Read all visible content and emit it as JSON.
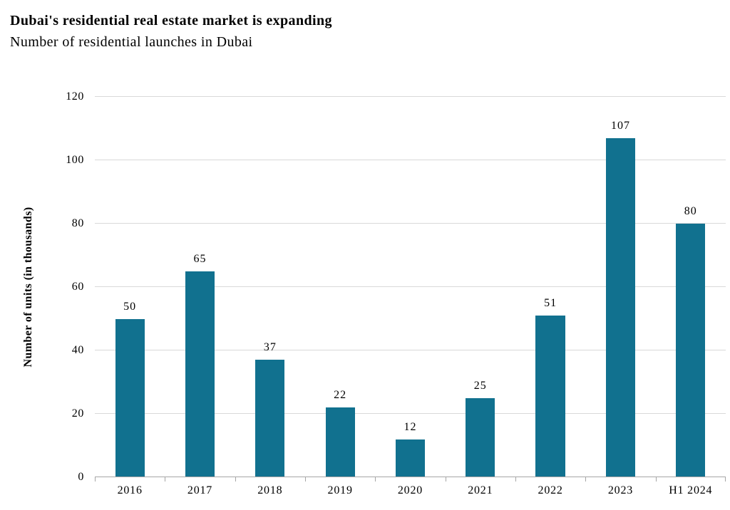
{
  "header": {
    "title": "Dubai's residential real estate market is expanding",
    "subtitle": "Number of residential launches in Dubai"
  },
  "chart_data": {
    "type": "bar",
    "title": "Dubai's residential real estate market is expanding",
    "subtitle": "Number of residential launches in Dubai",
    "categories": [
      "2016",
      "2017",
      "2018",
      "2019",
      "2020",
      "2021",
      "2022",
      "2023",
      "H1 2024"
    ],
    "values": [
      50,
      65,
      37,
      22,
      12,
      25,
      51,
      107,
      80
    ],
    "xlabel": "",
    "ylabel": "Number of units (in thousands)",
    "ylim": [
      0,
      120
    ],
    "y_ticks": [
      0,
      20,
      40,
      60,
      80,
      100,
      120
    ],
    "grid": true,
    "legend": "none",
    "colors": {
      "bar": "#11718f",
      "gridline": "#d9d9d9",
      "axis": "#a6a6a6",
      "text": "#000000",
      "background": "#ffffff"
    }
  }
}
